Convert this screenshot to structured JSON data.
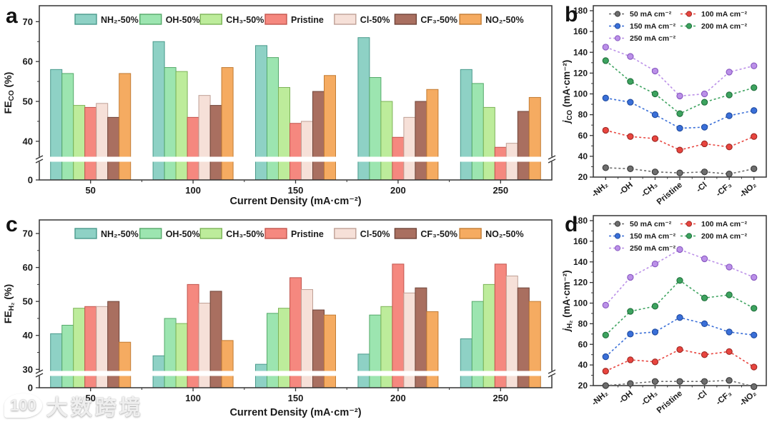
{
  "watermark": {
    "logo": "100",
    "text": "大数跨境"
  },
  "panel_letters": {
    "a": "a",
    "b": "b",
    "c": "c",
    "d": "d"
  },
  "chart_data": [
    {
      "panel": "a",
      "type": "bar",
      "xlabel": "Current Density (mA·cm⁻²)",
      "ylabel": {
        "main": "FE",
        "italic": false,
        "sub": "CO",
        "rest": " (%)"
      },
      "categories": [
        "50",
        "100",
        "150",
        "200",
        "250"
      ],
      "y_axis": {
        "upper_ticks": [
          40,
          50,
          60,
          70
        ],
        "minor_ticks": [
          45,
          55,
          65
        ],
        "zero_tick": "0",
        "break": true,
        "upper_range": [
          35.5,
          74
        ]
      },
      "legend_position": "top-inside",
      "grid": false,
      "series": [
        {
          "name": "NH₂-50%",
          "fill": "#8ed1c5",
          "edge": "#4a9a8c",
          "values": [
            58,
            65,
            64,
            66,
            58
          ]
        },
        {
          "name": "OH-50%",
          "fill": "#9ce5b0",
          "edge": "#55a96a",
          "values": [
            57,
            58.5,
            61,
            56,
            54.5
          ]
        },
        {
          "name": "CH₃-50%",
          "fill": "#bdec9b",
          "edge": "#7cb357",
          "values": [
            49,
            57.5,
            53.5,
            50,
            48.5
          ]
        },
        {
          "name": "Pristine",
          "fill": "#f5887f",
          "edge": "#c2554e",
          "values": [
            48.5,
            46,
            44.5,
            41,
            38.5
          ]
        },
        {
          "name": "Cl-50%",
          "fill": "#f6e0d8",
          "edge": "#bfa096",
          "values": [
            49.5,
            51.5,
            45,
            46,
            39.5
          ]
        },
        {
          "name": "CF₃-50%",
          "fill": "#a96f60",
          "edge": "#70453a",
          "values": [
            46,
            49,
            52.5,
            50,
            47.5
          ]
        },
        {
          "name": "NO₂-50%",
          "fill": "#f5ab61",
          "edge": "#c27c34",
          "values": [
            57,
            58.5,
            56.5,
            53,
            51
          ]
        }
      ]
    },
    {
      "panel": "b",
      "type": "scatter",
      "xlabel": "",
      "ylabel": {
        "main": "j",
        "italic": true,
        "sub": "CO",
        "rest": " (mA·cm⁻²)"
      },
      "categories": [
        "-NH₂",
        "-OH",
        "-CH₃",
        "Pristine",
        "-Cl",
        "-CF₃",
        "-NO₂"
      ],
      "y_axis": {
        "min": 20,
        "max": 180,
        "step": 20
      },
      "legend_position": "top-left-inside",
      "grid": false,
      "series": [
        {
          "name": "50 mA cm⁻²",
          "color": "#6e6e6e",
          "edge": "#383838",
          "values": [
            29,
            28,
            25,
            24,
            25,
            23,
            28
          ]
        },
        {
          "name": "100 mA cm⁻²",
          "color": "#e8453f",
          "edge": "#9e2722",
          "values": [
            65,
            59,
            57,
            46,
            52,
            49,
            59
          ]
        },
        {
          "name": "150 mA cm⁻²",
          "color": "#3a6fd8",
          "edge": "#1f4ba0",
          "values": [
            96,
            92,
            80,
            67,
            68,
            79,
            84
          ]
        },
        {
          "name": "200 mA cm⁻²",
          "color": "#3da35f",
          "edge": "#20703c",
          "values": [
            132,
            112,
            100,
            81,
            92,
            99,
            106
          ]
        },
        {
          "name": "250 mA cm⁻²",
          "color": "#bb90e8",
          "edge": "#8757c0",
          "values": [
            145,
            136,
            122,
            98,
            100,
            121,
            127
          ]
        }
      ]
    },
    {
      "panel": "c",
      "type": "bar",
      "xlabel": "Current Density (mA·cm⁻²)",
      "ylabel": {
        "main": "FE",
        "italic": false,
        "sub": "H₂",
        "rest": " (%)"
      },
      "categories": [
        "50",
        "100",
        "150",
        "200",
        "250"
      ],
      "y_axis": {
        "upper_ticks": [
          30,
          40,
          50,
          60,
          70
        ],
        "minor_ticks": [
          35,
          45,
          55,
          65
        ],
        "zero_tick": "0",
        "break": true,
        "upper_range": [
          28.8,
          74
        ]
      },
      "legend_position": "top-inside",
      "grid": false,
      "series": [
        {
          "name": "NH₂-50%",
          "fill": "#8ed1c5",
          "edge": "#4a9a8c",
          "values": [
            40.5,
            34,
            31.5,
            34.5,
            39
          ]
        },
        {
          "name": "OH-50%",
          "fill": "#9ce5b0",
          "edge": "#55a96a",
          "values": [
            43,
            45,
            46.5,
            46,
            50
          ]
        },
        {
          "name": "CH₃-50%",
          "fill": "#bdec9b",
          "edge": "#7cb357",
          "values": [
            48,
            43.5,
            48,
            48.5,
            55
          ]
        },
        {
          "name": "Pristine",
          "fill": "#f5887f",
          "edge": "#c2554e",
          "values": [
            48.5,
            55,
            57,
            61,
            61
          ]
        },
        {
          "name": "Cl-50%",
          "fill": "#f6e0d8",
          "edge": "#bfa096",
          "values": [
            48.5,
            49.5,
            53.5,
            52.5,
            57.5
          ]
        },
        {
          "name": "CF₃-50%",
          "fill": "#a96f60",
          "edge": "#70453a",
          "values": [
            50,
            53,
            47.5,
            54,
            54
          ]
        },
        {
          "name": "NO₂-50%",
          "fill": "#f5ab61",
          "edge": "#c27c34",
          "values": [
            38,
            38.5,
            46,
            47,
            50
          ]
        }
      ]
    },
    {
      "panel": "d",
      "type": "scatter",
      "xlabel": "",
      "ylabel": {
        "main": "j",
        "italic": true,
        "sub": "H₂",
        "rest": " (mA·cm⁻²)"
      },
      "categories": [
        "-NH₂",
        "-OH",
        "-CH₃",
        "Pristine",
        "-Cl",
        "-CF₃",
        "-NO₂"
      ],
      "y_axis": {
        "min": 20,
        "max": 180,
        "step": 20
      },
      "legend_position": "top-left-inside",
      "grid": false,
      "series": [
        {
          "name": "50 mA cm⁻²",
          "color": "#6e6e6e",
          "edge": "#383838",
          "values": [
            20,
            22,
            24,
            24,
            24,
            25,
            19
          ]
        },
        {
          "name": "100 mA cm⁻²",
          "color": "#e8453f",
          "edge": "#9e2722",
          "values": [
            34,
            45,
            43,
            55,
            50,
            53,
            38
          ]
        },
        {
          "name": "150 mA cm⁻²",
          "color": "#3a6fd8",
          "edge": "#1f4ba0",
          "values": [
            48,
            70,
            72,
            86,
            80,
            72,
            69
          ]
        },
        {
          "name": "200 mA cm⁻²",
          "color": "#3da35f",
          "edge": "#20703c",
          "values": [
            69,
            92,
            97,
            122,
            105,
            108,
            95
          ]
        },
        {
          "name": "250 mA cm⁻²",
          "color": "#bb90e8",
          "edge": "#8757c0",
          "values": [
            98,
            125,
            138,
            152,
            143,
            135,
            125
          ]
        }
      ]
    }
  ]
}
